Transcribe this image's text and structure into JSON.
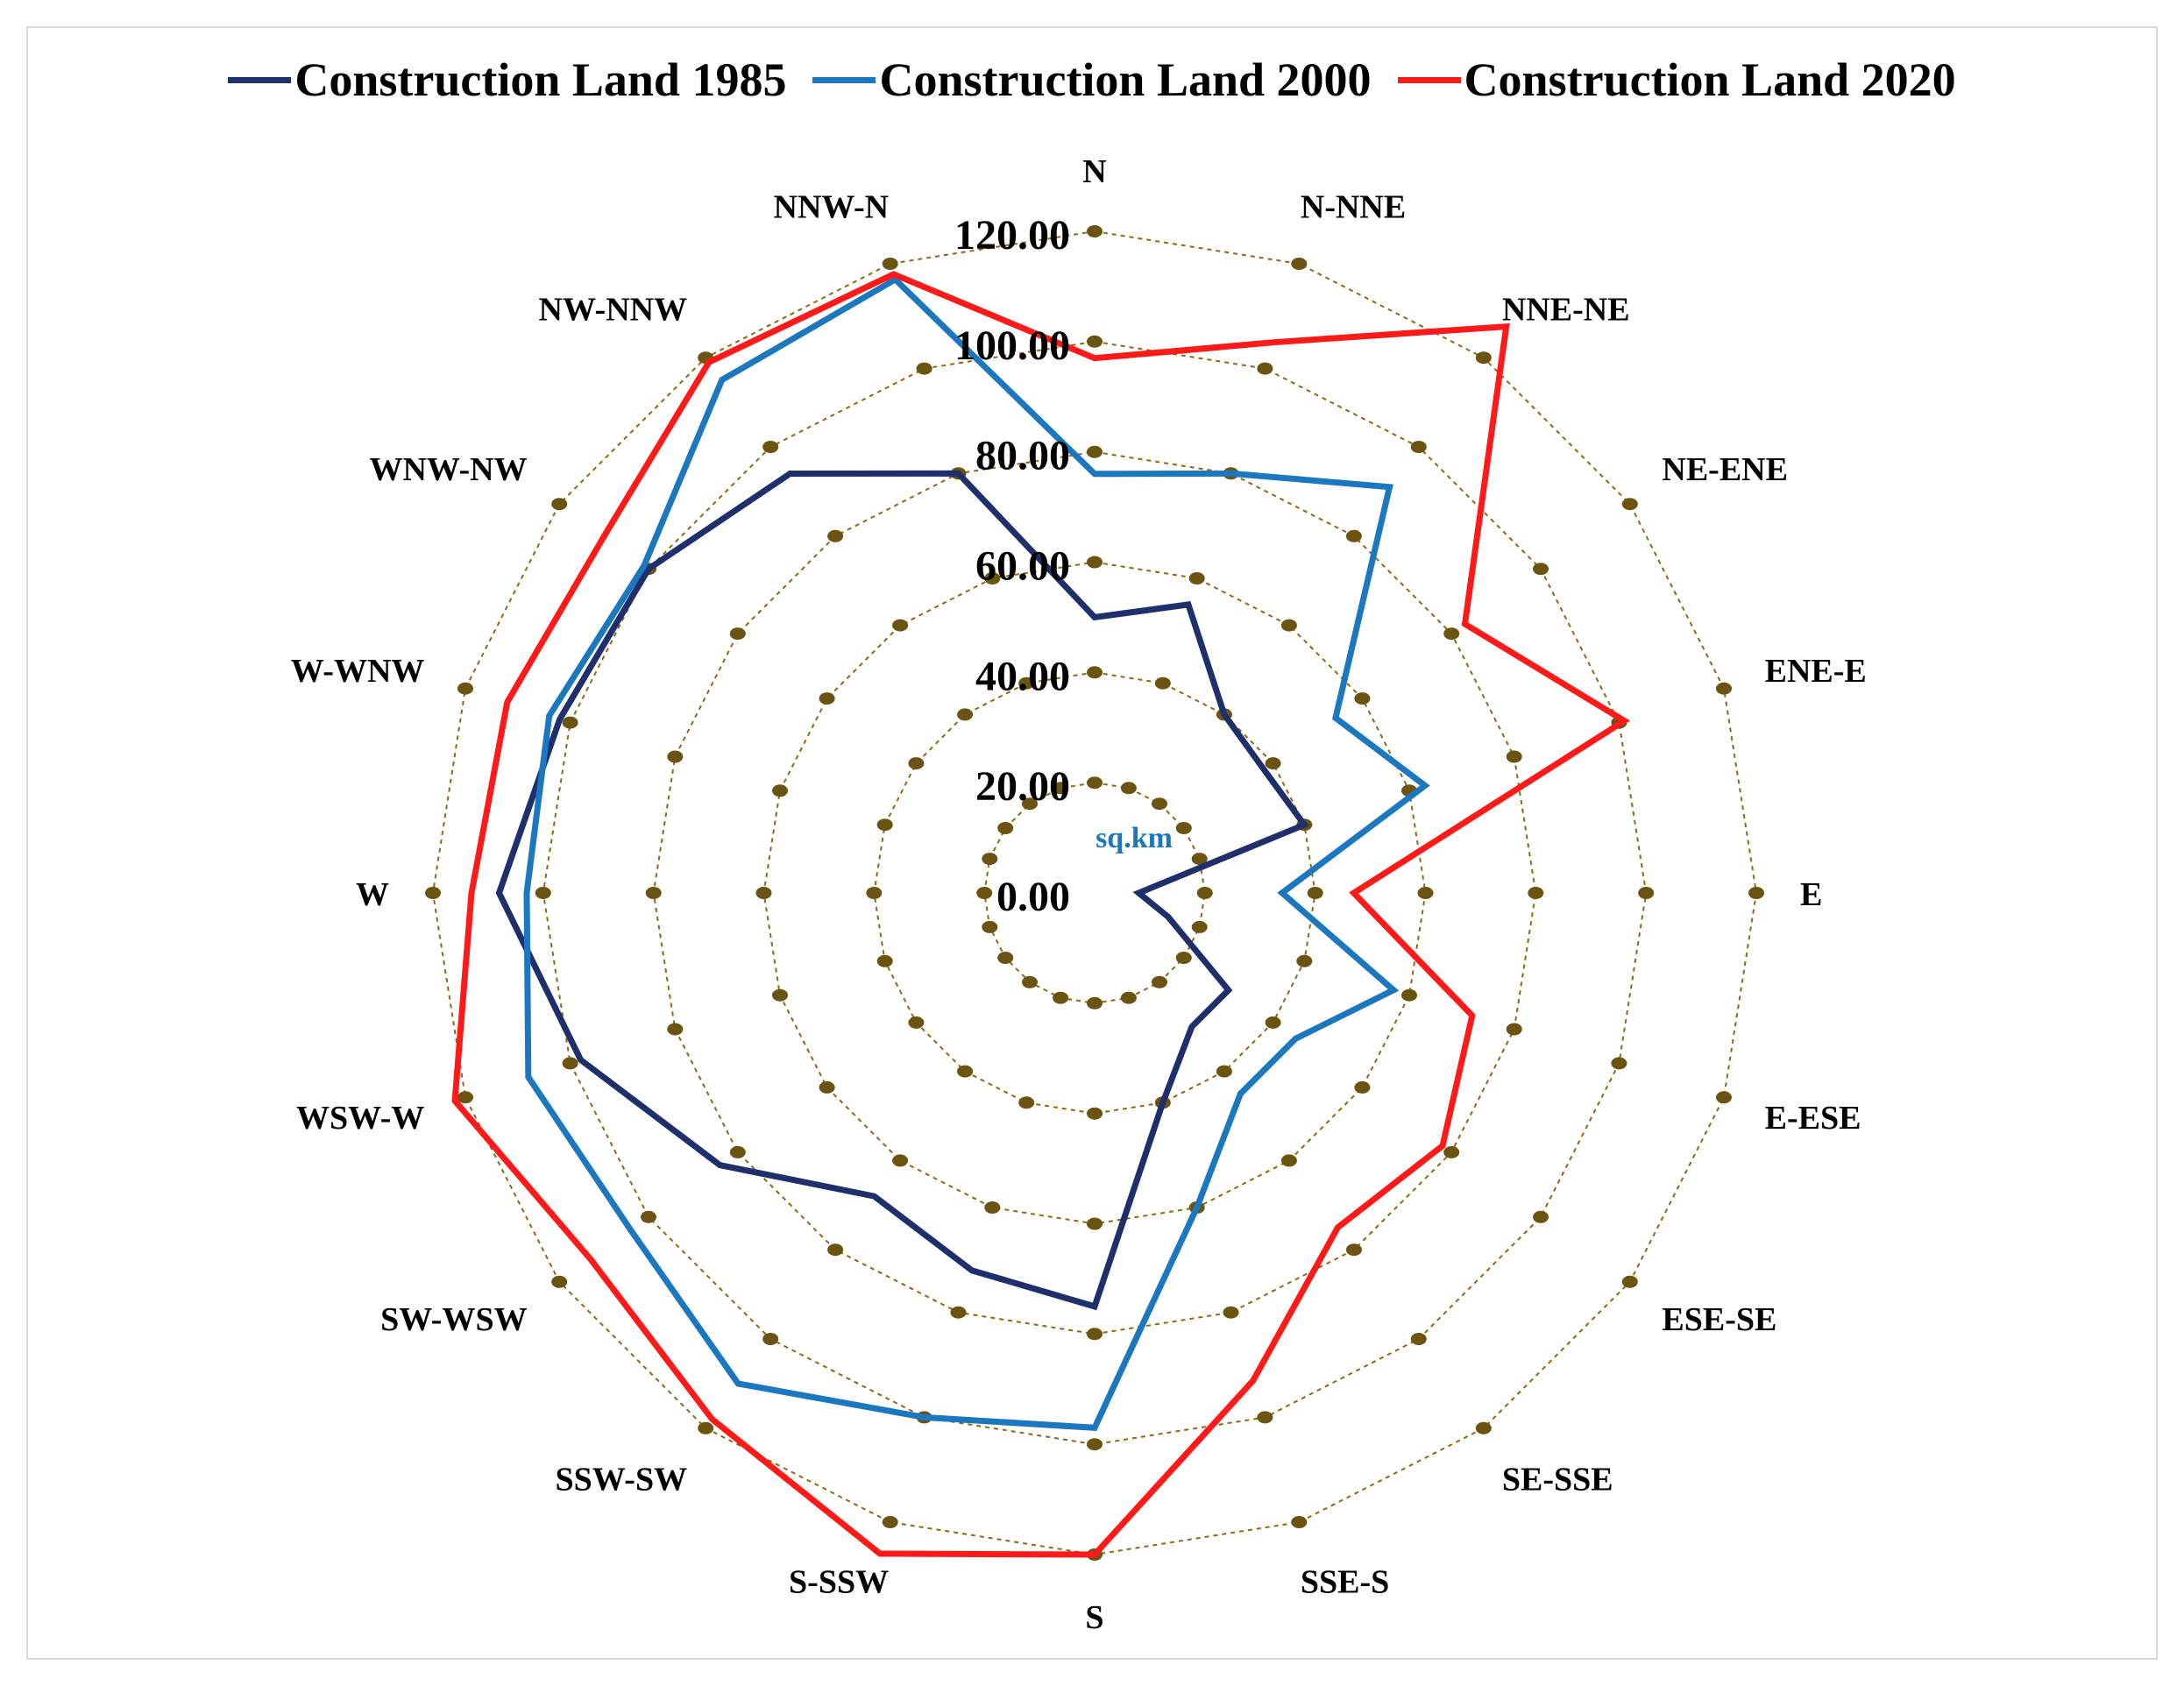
{
  "chart_data": {
    "type": "radar",
    "title": "",
    "unit_label": "sq.km",
    "categories": [
      "N",
      "N-NNE",
      "NNE-NE",
      "NE-ENE",
      "ENE-E",
      "E",
      "E-ESE",
      "ESE-SE",
      "SE-SSE",
      "SSE-S",
      "S",
      "S-SSW",
      "SSW-SW",
      "SW-WSW",
      "WSW-W",
      "W",
      "W-WNW",
      "WNW-NW",
      "NW-NNW",
      "NNW-N"
    ],
    "rlim": [
      0,
      120
    ],
    "rticks": [
      0,
      20,
      40,
      60,
      80,
      100,
      120
    ],
    "rtick_labels": [
      "0.00",
      "20.00",
      "40.00",
      "60.00",
      "80.00",
      "100.00",
      "120.00"
    ],
    "series": [
      {
        "name": "Construction Land 1985",
        "color": "#1f2f6b",
        "values": [
          50,
          55,
          40,
          38,
          40,
          8,
          14,
          30,
          30,
          40,
          75,
          72,
          68,
          84,
          98,
          108,
          102,
          100,
          94,
          80
        ]
      },
      {
        "name": "Construction Land 2000",
        "color": "#1b78be",
        "values": [
          76,
          80,
          91,
          54,
          63,
          34,
          57,
          45,
          45,
          60,
          97,
          100,
          110,
          104,
          108,
          103,
          104,
          101,
          115,
          117
        ]
      },
      {
        "name": "Construction Land 2020",
        "color": "#ff1a1a",
        "values": [
          97,
          105,
          127,
          83,
          101,
          47,
          72,
          78,
          75,
          93,
          120,
          126,
          118,
          113,
          122,
          113,
          112,
          110,
          119,
          118
        ]
      }
    ],
    "legend_position": "top",
    "grid": "dotted-polygon"
  }
}
